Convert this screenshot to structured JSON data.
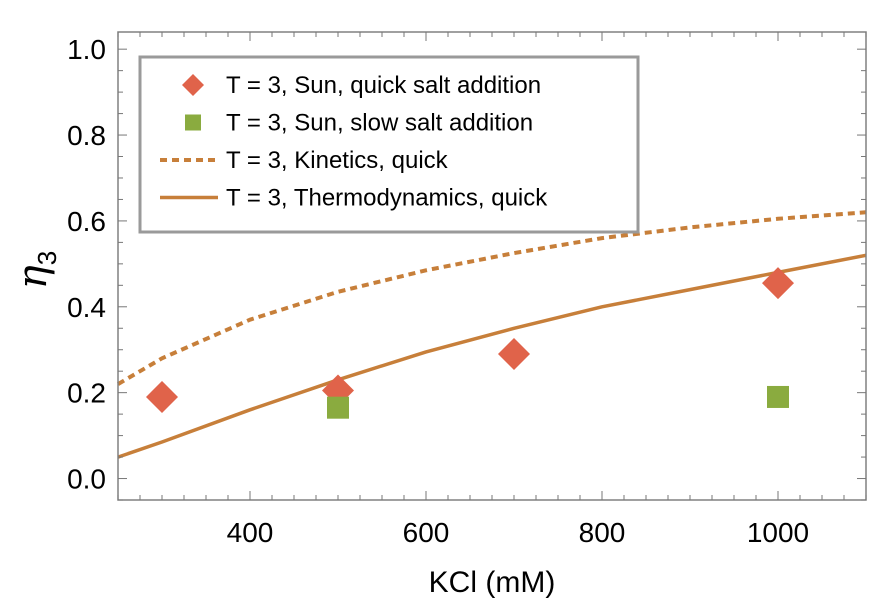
{
  "chart_data": {
    "type": "scatter",
    "title": "",
    "xlabel": "KCl (mM)",
    "ylabel": {
      "main": "η",
      "sub": "3"
    },
    "xlim": [
      250,
      1100
    ],
    "ylim": [
      -0.05,
      1.04
    ],
    "x_ticks": [
      400,
      600,
      800,
      1000
    ],
    "y_ticks": [
      0.0,
      0.2,
      0.4,
      0.6,
      0.8,
      1.0
    ],
    "y_tick_labels": [
      "0.0",
      "0.2",
      "0.4",
      "0.6",
      "0.8",
      "1.0"
    ],
    "legend_position": "top-left",
    "series": [
      {
        "name": "T = 3, Sun, quick salt addition",
        "kind": "marker",
        "marker": "diamond",
        "color": "#e0634a",
        "x": [
          300,
          500,
          700,
          1000
        ],
        "y": [
          0.19,
          0.205,
          0.29,
          0.455
        ]
      },
      {
        "name": "T = 3, Sun, slow salt addition",
        "kind": "marker",
        "marker": "square",
        "color": "#8aab3f",
        "x": [
          500,
          1000
        ],
        "y": [
          0.165,
          0.19
        ]
      },
      {
        "name": "T = 3, Kinetics, quick",
        "kind": "line",
        "style": "dashed",
        "color": "#c77f3a",
        "x": [
          250,
          300,
          400,
          500,
          600,
          700,
          800,
          900,
          1000,
          1100
        ],
        "y": [
          0.22,
          0.28,
          0.37,
          0.435,
          0.485,
          0.525,
          0.56,
          0.585,
          0.605,
          0.62
        ]
      },
      {
        "name": "T = 3, Thermodynamics, quick",
        "kind": "line",
        "style": "solid",
        "color": "#c77f3a",
        "x": [
          250,
          300,
          400,
          500,
          600,
          700,
          800,
          900,
          1000,
          1100
        ],
        "y": [
          0.05,
          0.085,
          0.16,
          0.23,
          0.295,
          0.35,
          0.4,
          0.44,
          0.48,
          0.52
        ]
      }
    ]
  }
}
